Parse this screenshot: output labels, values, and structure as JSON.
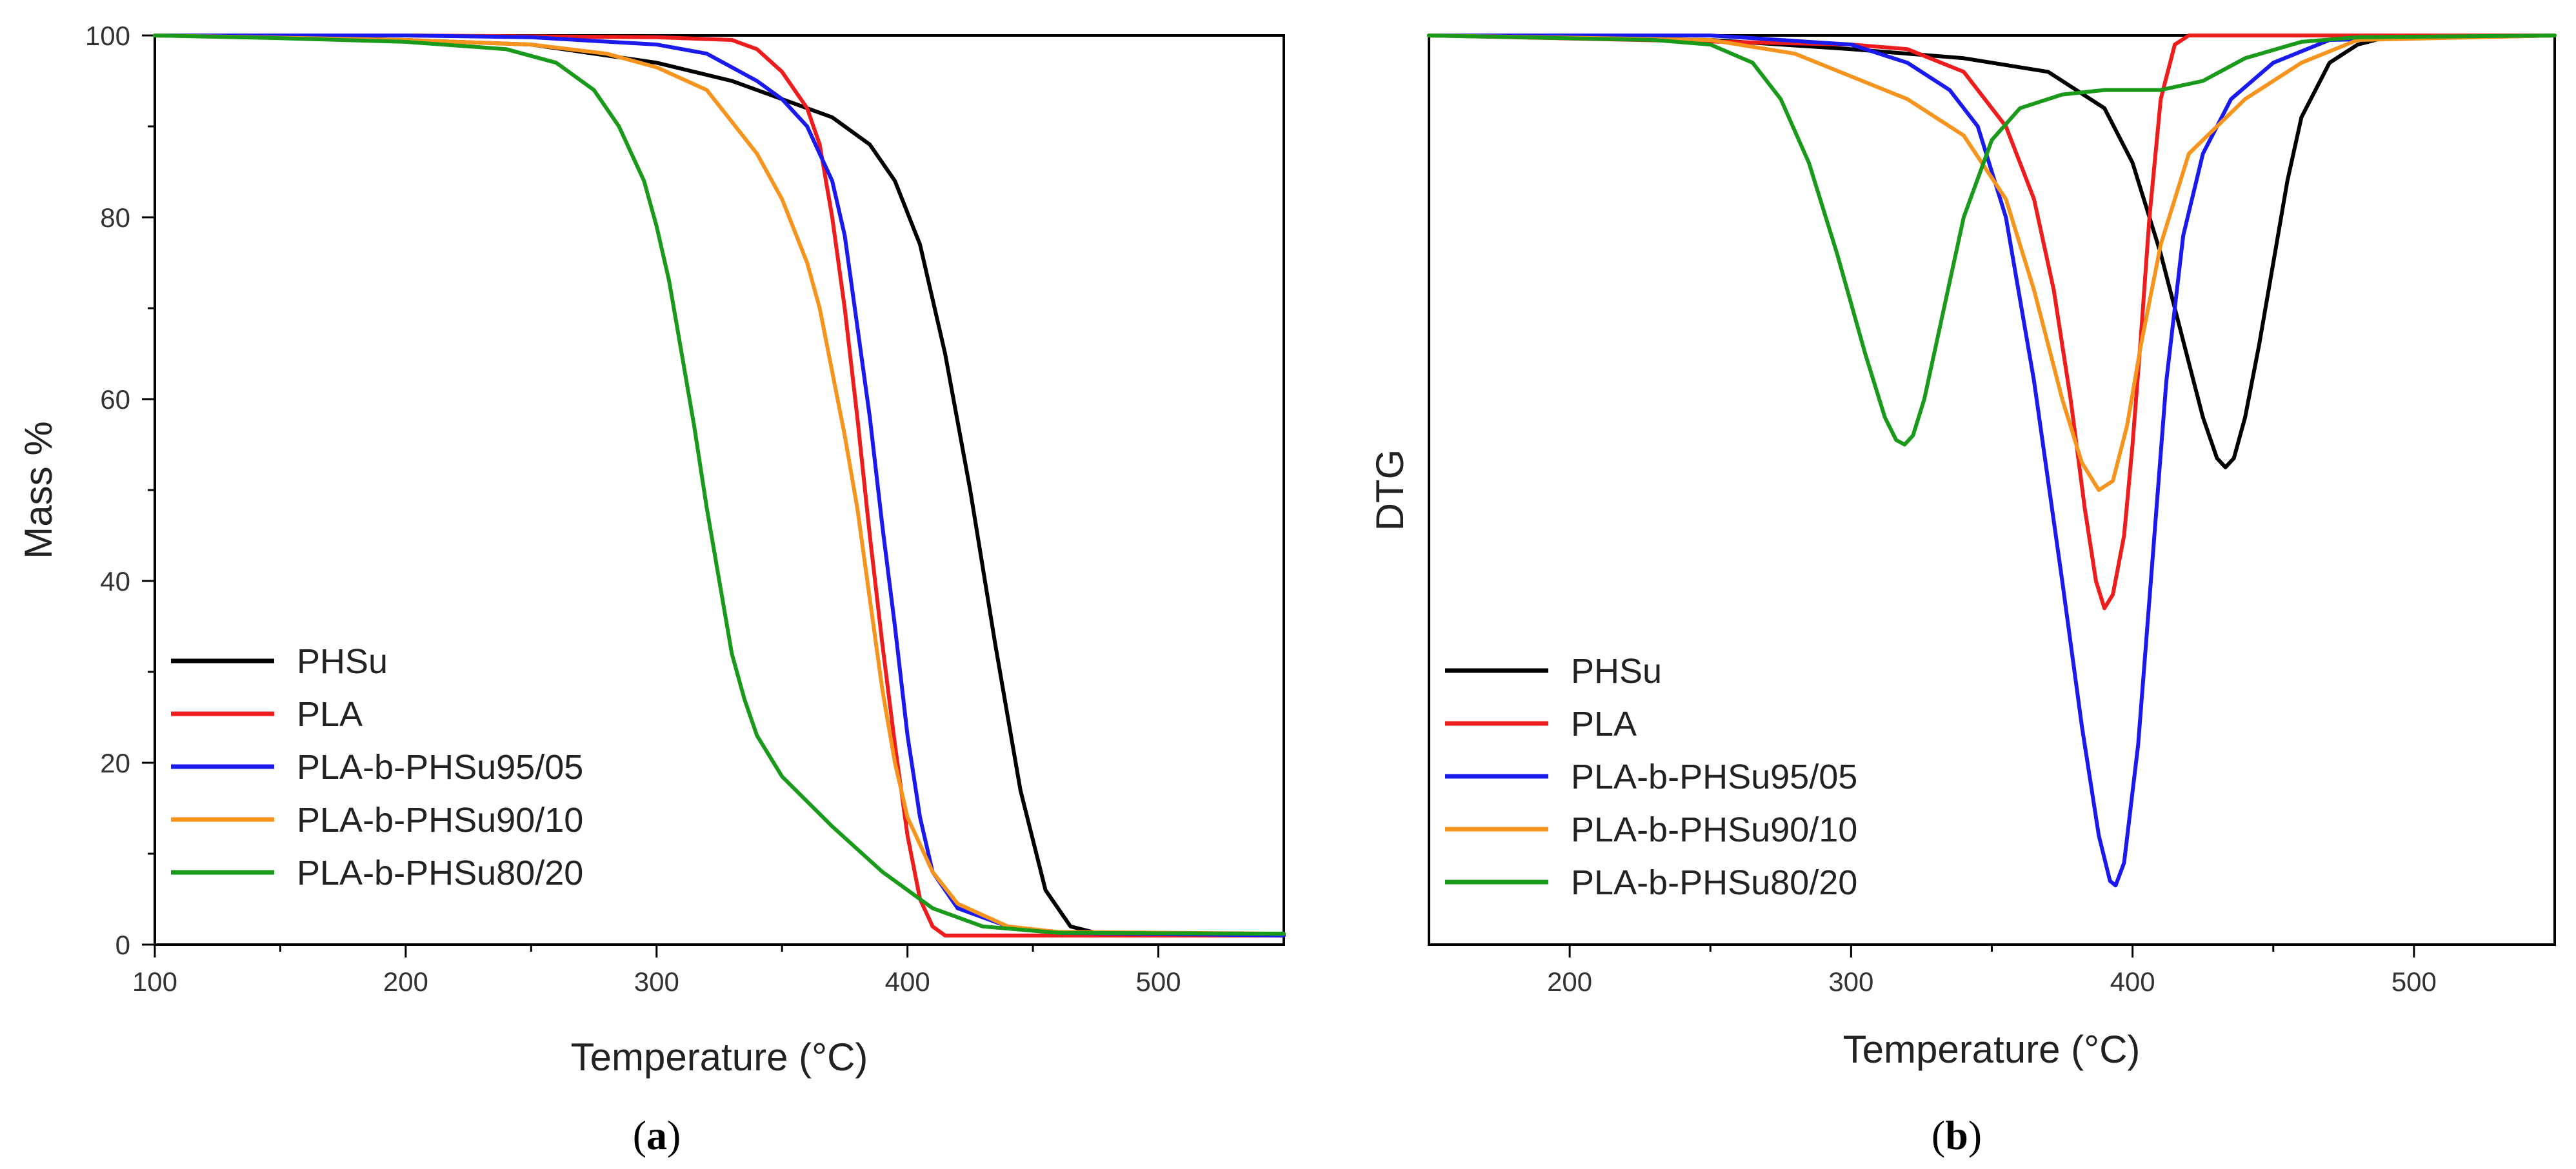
{
  "figure": {
    "caption_a": {
      "open": "(",
      "letter": "a",
      "close": ")"
    },
    "caption_b": {
      "open": "(",
      "letter": "b",
      "close": ")"
    }
  },
  "chart_data": [
    {
      "id": "a",
      "type": "line",
      "title": "",
      "xlabel": "Temperature (°C)",
      "ylabel": "Mass %",
      "xlim": [
        100,
        550
      ],
      "ylim": [
        0,
        100
      ],
      "xticks": [
        100,
        200,
        300,
        400,
        500
      ],
      "yticks": [
        0,
        20,
        40,
        60,
        80,
        100
      ],
      "grid": false,
      "legend": "bottom-left",
      "series": [
        {
          "name": "PHSu",
          "color": "#000000",
          "x": [
            100,
            150,
            200,
            250,
            300,
            330,
            350,
            370,
            385,
            395,
            405,
            415,
            425,
            435,
            445,
            455,
            465,
            475,
            500,
            550
          ],
          "y": [
            100,
            99.8,
            99.5,
            99,
            97,
            95,
            93,
            91,
            88,
            84,
            77,
            65,
            50,
            33,
            17,
            6,
            2,
            1.3,
            1.2,
            1.2
          ]
        },
        {
          "name": "PLA",
          "color": "#ee1c1c",
          "x": [
            100,
            200,
            300,
            330,
            340,
            350,
            360,
            365,
            370,
            375,
            380,
            385,
            390,
            395,
            400,
            405,
            410,
            415,
            430,
            550
          ],
          "y": [
            100,
            100,
            99.8,
            99.5,
            98.5,
            96,
            92,
            88,
            80,
            70,
            58,
            45,
            33,
            22,
            12,
            5,
            2,
            1,
            1,
            1
          ]
        },
        {
          "name": "PLA-b-PHSu95/05",
          "color": "#1a1aee",
          "x": [
            100,
            200,
            250,
            300,
            320,
            340,
            350,
            360,
            370,
            375,
            380,
            385,
            390,
            395,
            400,
            405,
            410,
            420,
            440,
            460,
            550
          ],
          "y": [
            100,
            100,
            99.8,
            99,
            98,
            95,
            93,
            90,
            84,
            78,
            68,
            58,
            46,
            35,
            23,
            14,
            8,
            4,
            2,
            1.3,
            1
          ]
        },
        {
          "name": "PLA-b-PHSu90/10",
          "color": "#f7941d",
          "x": [
            100,
            200,
            250,
            280,
            300,
            320,
            340,
            350,
            360,
            365,
            370,
            375,
            380,
            385,
            390,
            395,
            400,
            410,
            420,
            440,
            460,
            550
          ],
          "y": [
            100,
            99.5,
            99,
            98,
            96.5,
            94,
            87,
            82,
            75,
            70,
            63,
            56,
            48,
            38,
            28,
            20,
            14,
            8,
            4.5,
            2,
            1.4,
            1.2
          ]
        },
        {
          "name": "PLA-b-PHSu80/20",
          "color": "#1a9a1a",
          "x": [
            100,
            150,
            200,
            240,
            260,
            275,
            285,
            295,
            300,
            305,
            310,
            315,
            320,
            325,
            330,
            335,
            340,
            350,
            370,
            390,
            410,
            430,
            460,
            550
          ],
          "y": [
            100,
            99.7,
            99.3,
            98.5,
            97,
            94,
            90,
            84,
            79,
            73,
            65,
            57,
            48,
            40,
            32,
            27,
            23,
            18.5,
            13,
            8,
            4,
            2,
            1.3,
            1.2
          ]
        }
      ]
    },
    {
      "id": "b",
      "type": "line",
      "title": "",
      "xlabel": "Temperature (°C)",
      "ylabel": "DTG",
      "xlim": [
        150,
        550
      ],
      "ylim": [
        0,
        1
      ],
      "xticks": [
        200,
        300,
        400,
        500
      ],
      "yticks": [],
      "grid": false,
      "legend": "bottom-left",
      "series": [
        {
          "name": "PHSu",
          "color": "#000000",
          "x": [
            150,
            250,
            300,
            340,
            370,
            390,
            400,
            410,
            420,
            425,
            430,
            433,
            436,
            440,
            445,
            450,
            455,
            460,
            470,
            480,
            490,
            550
          ],
          "y": [
            1.0,
            0.995,
            0.985,
            0.975,
            0.96,
            0.92,
            0.86,
            0.76,
            0.64,
            0.58,
            0.535,
            0.525,
            0.535,
            0.58,
            0.66,
            0.75,
            0.84,
            0.91,
            0.97,
            0.99,
            0.998,
            1.0
          ]
        },
        {
          "name": "PLA",
          "color": "#ee1c1c",
          "x": [
            150,
            300,
            320,
            340,
            355,
            365,
            372,
            378,
            383,
            387,
            390,
            393,
            397,
            400,
            403,
            406,
            410,
            415,
            420,
            550
          ],
          "y": [
            1.0,
            0.99,
            0.985,
            0.96,
            0.9,
            0.82,
            0.72,
            0.6,
            0.48,
            0.4,
            0.37,
            0.385,
            0.45,
            0.55,
            0.67,
            0.8,
            0.93,
            0.99,
            1.0,
            1.0
          ]
        },
        {
          "name": "PLA-b-PHSu95/05",
          "color": "#1a1aee",
          "x": [
            150,
            250,
            300,
            320,
            335,
            345,
            355,
            365,
            375,
            382,
            388,
            392,
            394,
            397,
            402,
            407,
            412,
            418,
            425,
            435,
            450,
            470,
            550
          ],
          "y": [
            1.0,
            1.0,
            0.99,
            0.97,
            0.94,
            0.9,
            0.8,
            0.62,
            0.4,
            0.24,
            0.12,
            0.07,
            0.065,
            0.09,
            0.22,
            0.42,
            0.62,
            0.78,
            0.87,
            0.93,
            0.97,
            0.995,
            1.0
          ]
        },
        {
          "name": "PLA-b-PHSu90/10",
          "color": "#f7941d",
          "x": [
            150,
            250,
            280,
            300,
            320,
            340,
            355,
            365,
            375,
            382,
            388,
            393,
            398,
            403,
            410,
            420,
            440,
            460,
            480,
            550
          ],
          "y": [
            1.0,
            0.995,
            0.98,
            0.955,
            0.93,
            0.89,
            0.82,
            0.72,
            0.6,
            0.53,
            0.5,
            0.51,
            0.57,
            0.66,
            0.77,
            0.87,
            0.93,
            0.97,
            0.995,
            1.0
          ]
        },
        {
          "name": "PLA-b-PHSu80/20",
          "color": "#1a9a1a",
          "x": [
            150,
            230,
            250,
            265,
            275,
            285,
            295,
            305,
            312,
            316,
            319,
            322,
            326,
            333,
            340,
            350,
            360,
            375,
            390,
            410,
            425,
            440,
            460,
            480,
            550
          ],
          "y": [
            1.0,
            0.995,
            0.99,
            0.97,
            0.93,
            0.86,
            0.76,
            0.65,
            0.58,
            0.555,
            0.55,
            0.56,
            0.6,
            0.7,
            0.8,
            0.885,
            0.92,
            0.935,
            0.94,
            0.94,
            0.95,
            0.975,
            0.993,
            0.998,
            1.0
          ]
        }
      ]
    }
  ]
}
